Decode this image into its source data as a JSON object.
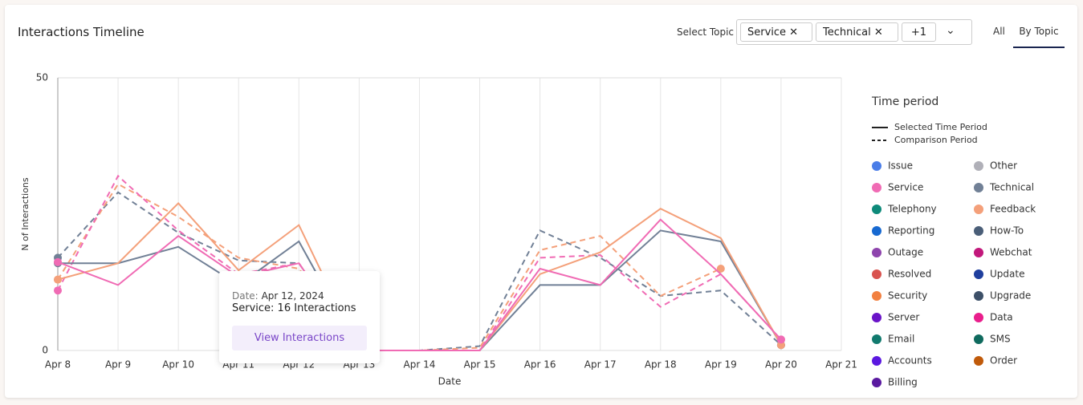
{
  "header": {
    "title": "Interactions Timeline",
    "select_label": "Select Topic",
    "chips": [
      "Service",
      "Technical",
      "+1"
    ],
    "tabs": [
      "All",
      "By Topic"
    ]
  },
  "chart_data": {
    "type": "line",
    "x_label": "Date",
    "y_label": "N of Interactions",
    "categories": [
      "Apr 8",
      "Apr 9",
      "Apr 10",
      "Apr 11",
      "Apr 12",
      "Apr 13",
      "Apr 14",
      "Apr 15",
      "Apr 16",
      "Apr 17",
      "Apr 18",
      "Apr 19",
      "Apr 20",
      "Apr 21"
    ],
    "ylim": [
      0,
      50
    ],
    "yticks": [
      0,
      50
    ],
    "grid": true,
    "series": [
      {
        "name": "Technical",
        "color": "#718096",
        "dashed": true,
        "values": [
          17,
          29,
          21.6,
          16.5,
          16,
          0,
          0,
          0.8,
          22,
          17,
          10,
          11,
          1,
          null
        ]
      },
      {
        "name": "Feedback",
        "color": "#f4a07a",
        "dashed": true,
        "values": [
          13,
          30.5,
          24.5,
          17,
          15,
          0,
          0,
          0.5,
          18.4,
          21,
          10,
          15,
          null,
          null
        ]
      },
      {
        "name": "Service",
        "color": "#f06bb4",
        "dashed": true,
        "values": [
          11,
          32,
          22,
          14,
          16,
          0,
          0,
          0,
          17,
          17.5,
          8,
          14,
          2,
          null
        ]
      },
      {
        "name": "Technical",
        "color": "#718096",
        "dashed": false,
        "values": [
          16,
          16,
          19,
          12,
          20,
          0,
          0,
          0,
          12,
          12,
          22,
          20,
          1,
          null
        ]
      },
      {
        "name": "Feedback",
        "color": "#f4a07a",
        "dashed": false,
        "values": [
          13,
          16,
          27,
          14.7,
          23,
          0,
          0,
          0,
          14,
          18,
          26,
          20.6,
          1,
          null
        ]
      },
      {
        "name": "Service",
        "color": "#f06bb4",
        "dashed": false,
        "values": [
          16.2,
          12,
          21,
          13.5,
          16,
          0,
          0,
          0,
          15,
          12,
          24,
          14,
          2,
          null
        ]
      }
    ]
  },
  "legend": {
    "title": "Time period",
    "styles": [
      "Selected Time Period",
      "Comparison Period"
    ],
    "items": [
      {
        "name": "Issue",
        "color": "#4a7de8"
      },
      {
        "name": "Other",
        "color": "#b0b0b8"
      },
      {
        "name": "Service",
        "color": "#f06bb4"
      },
      {
        "name": "Technical",
        "color": "#718096"
      },
      {
        "name": "Telephony",
        "color": "#0e8a7a"
      },
      {
        "name": "Feedback",
        "color": "#f4a07a"
      },
      {
        "name": "Reporting",
        "color": "#1769d1"
      },
      {
        "name": "How-To",
        "color": "#4a5e78"
      },
      {
        "name": "Outage",
        "color": "#8e44ad"
      },
      {
        "name": "Webchat",
        "color": "#c2187b"
      },
      {
        "name": "Resolved",
        "color": "#d9534f"
      },
      {
        "name": "Update",
        "color": "#1f3f9e"
      },
      {
        "name": "Security",
        "color": "#f28040"
      },
      {
        "name": "Upgrade",
        "color": "#3d5068"
      },
      {
        "name": "Server",
        "color": "#6a14c8"
      },
      {
        "name": "Data",
        "color": "#e91e8c"
      },
      {
        "name": "Email",
        "color": "#117a6e"
      },
      {
        "name": "SMS",
        "color": "#0f6a5e"
      },
      {
        "name": "Accounts",
        "color": "#5b18e0"
      },
      {
        "name": "Order",
        "color": "#c05a0a"
      },
      {
        "name": "Billing",
        "color": "#5a1aa0"
      }
    ]
  },
  "tooltip": {
    "date_label": "Date:",
    "date": "Apr 12, 2024",
    "text": "Service: 16 Interactions",
    "button": "View Interactions"
  }
}
